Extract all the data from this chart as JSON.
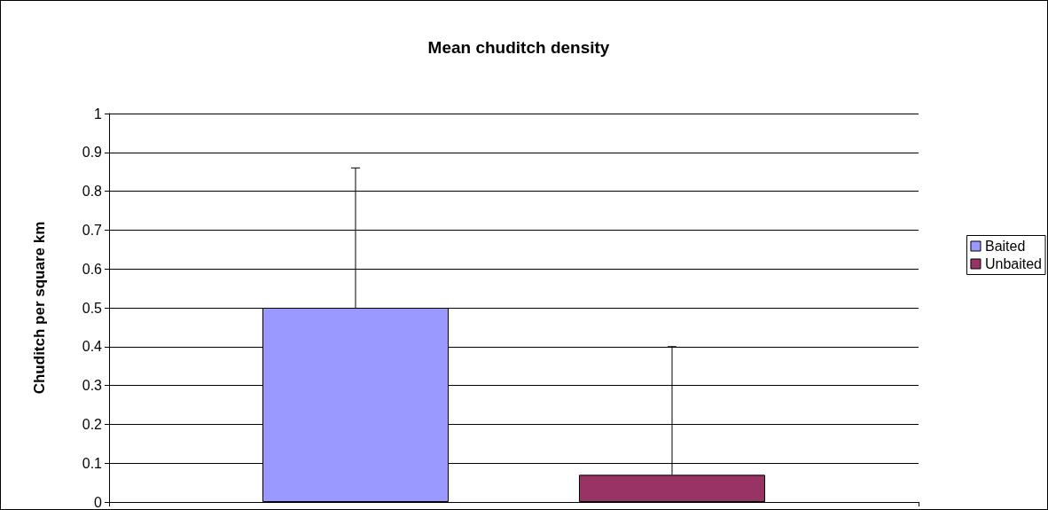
{
  "chart_data": {
    "type": "bar",
    "title": "Mean chuditch density",
    "ylabel": "Chuditch per square km",
    "categories": [
      null
    ],
    "series": [
      {
        "name": "Baited",
        "color": "#9999ff",
        "values": [
          0.5
        ],
        "errors": [
          [
            0.5,
            0.86
          ]
        ]
      },
      {
        "name": "Unbaited",
        "color": "#993366",
        "values": [
          0.07
        ],
        "errors": [
          [
            0.07,
            0.4
          ]
        ]
      }
    ],
    "ylim": [
      0,
      1
    ],
    "yticks": [
      0,
      0.1,
      0.2,
      0.3,
      0.4,
      0.5,
      0.6,
      0.7,
      0.8,
      0.9,
      1
    ],
    "grid": "y",
    "legend": "right"
  }
}
